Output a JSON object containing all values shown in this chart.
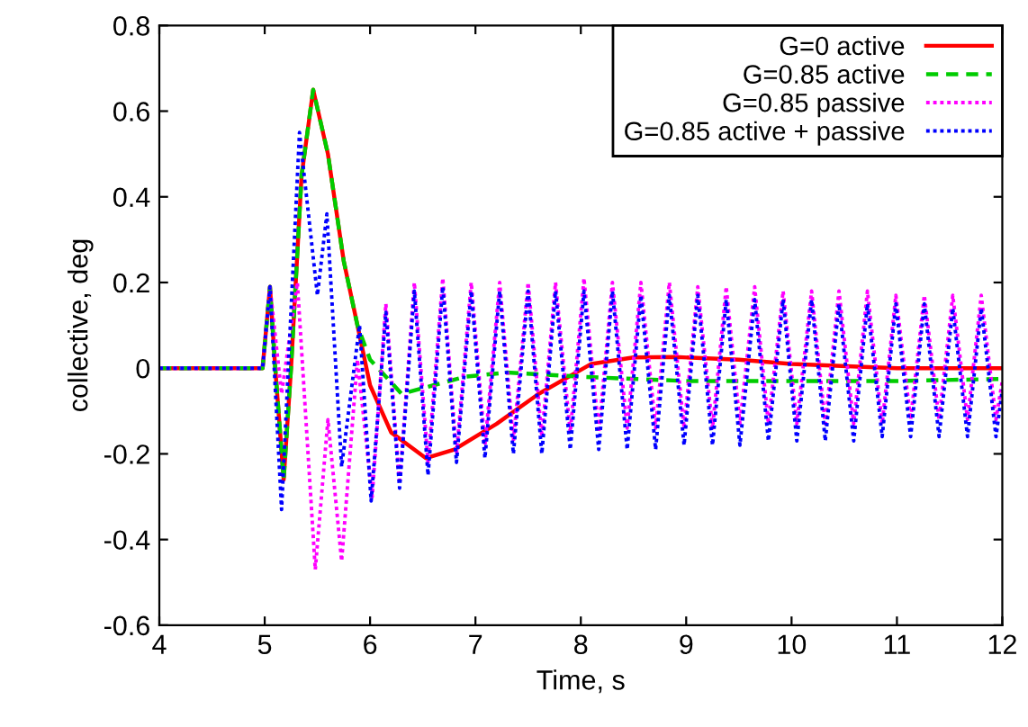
{
  "chart_data": {
    "type": "line",
    "xlabel": "Time, s",
    "ylabel": "collective, deg",
    "xlim": [
      4,
      12
    ],
    "ylim": [
      -0.6,
      0.8
    ],
    "xticks": [
      4,
      5,
      6,
      7,
      8,
      9,
      10,
      11,
      12
    ],
    "yticks": [
      -0.6,
      -0.4,
      -0.2,
      0,
      0.2,
      0.4,
      0.6,
      0.8
    ],
    "grid": false,
    "legend": "top right",
    "marker": "none",
    "series": [
      {
        "name": "G=0 active",
        "color": "#ff0000",
        "line_style": "solid",
        "x": [
          4,
          4.98,
          5.05,
          5.1,
          5.18,
          5.25,
          5.35,
          5.46,
          5.6,
          5.75,
          5.88,
          6.0,
          6.2,
          6.53,
          6.8,
          7.2,
          7.6,
          8.1,
          8.5,
          8.9,
          9.5,
          10,
          11,
          12
        ],
        "values": [
          0,
          0,
          0.19,
          0.0,
          -0.26,
          0.0,
          0.45,
          0.65,
          0.5,
          0.25,
          0.1,
          -0.04,
          -0.15,
          -0.21,
          -0.19,
          -0.13,
          -0.06,
          0.01,
          0.025,
          0.026,
          0.02,
          0.01,
          0.0,
          0.0
        ]
      },
      {
        "name": "G=0.85 active",
        "color": "#00cc00",
        "line_style": "dashed",
        "x": [
          4,
          4.98,
          5.05,
          5.1,
          5.18,
          5.25,
          5.35,
          5.46,
          5.6,
          5.75,
          5.88,
          6.0,
          6.3,
          6.6,
          6.9,
          7.3,
          8,
          9,
          10,
          11,
          12
        ],
        "values": [
          0,
          0,
          0.19,
          0.0,
          -0.26,
          0.0,
          0.45,
          0.65,
          0.5,
          0.25,
          0.1,
          0.02,
          -0.06,
          -0.04,
          -0.02,
          -0.01,
          -0.02,
          -0.03,
          -0.03,
          -0.03,
          -0.025
        ]
      },
      {
        "name": "G=0.85 passive",
        "color": "#ff00ff",
        "line_style": "dotted",
        "x": [
          4,
          4.98,
          5.05,
          5.16,
          5.31,
          5.48,
          5.6,
          5.73,
          5.88,
          6.02,
          6.15,
          6.28,
          6.42,
          6.55,
          6.69,
          6.82,
          6.96,
          7.09,
          7.23,
          7.36,
          7.5,
          7.63,
          7.76,
          7.9,
          8.03,
          8.17,
          8.3,
          8.44,
          8.57,
          8.71,
          8.84,
          8.98,
          9.11,
          9.25,
          9.38,
          9.51,
          9.65,
          9.78,
          9.92,
          10.05,
          10.19,
          10.32,
          10.45,
          10.59,
          10.72,
          10.86,
          10.99,
          11.13,
          11.26,
          11.4,
          11.53,
          11.67,
          11.8,
          11.94,
          12
        ],
        "values": [
          0,
          0,
          0.19,
          -0.06,
          0.2,
          -0.47,
          -0.12,
          -0.45,
          0.02,
          -0.3,
          0.15,
          -0.27,
          0.2,
          -0.22,
          0.21,
          -0.2,
          0.2,
          -0.18,
          0.2,
          -0.17,
          0.2,
          -0.16,
          0.2,
          -0.15,
          0.21,
          -0.15,
          0.2,
          -0.14,
          0.2,
          -0.14,
          0.2,
          -0.14,
          0.19,
          -0.14,
          0.19,
          -0.13,
          0.19,
          -0.13,
          0.18,
          -0.13,
          0.18,
          -0.13,
          0.18,
          -0.13,
          0.18,
          -0.13,
          0.17,
          -0.12,
          0.17,
          -0.12,
          0.17,
          -0.12,
          0.17,
          -0.12,
          -0.03
        ]
      },
      {
        "name": "G=0.85 active + passive",
        "color": "#0000ff",
        "line_style": "dotted",
        "x": [
          4,
          4.98,
          5.05,
          5.16,
          5.33,
          5.5,
          5.59,
          5.73,
          5.9,
          6.01,
          6.15,
          6.28,
          6.42,
          6.55,
          6.69,
          6.82,
          6.96,
          7.09,
          7.23,
          7.36,
          7.5,
          7.63,
          7.76,
          7.9,
          8.03,
          8.17,
          8.3,
          8.44,
          8.57,
          8.71,
          8.84,
          8.98,
          9.11,
          9.25,
          9.38,
          9.51,
          9.65,
          9.78,
          9.92,
          10.05,
          10.19,
          10.32,
          10.45,
          10.59,
          10.72,
          10.86,
          10.99,
          11.13,
          11.26,
          11.4,
          11.53,
          11.67,
          11.8,
          11.94,
          12
        ],
        "values": [
          0,
          0,
          0.19,
          -0.33,
          0.55,
          0.17,
          0.36,
          -0.23,
          0.1,
          -0.31,
          0.13,
          -0.28,
          0.18,
          -0.25,
          0.19,
          -0.22,
          0.18,
          -0.21,
          0.18,
          -0.2,
          0.18,
          -0.2,
          0.18,
          -0.19,
          0.18,
          -0.19,
          0.18,
          -0.19,
          0.17,
          -0.19,
          0.17,
          -0.18,
          0.17,
          -0.18,
          0.16,
          -0.18,
          0.16,
          -0.17,
          0.16,
          -0.17,
          0.16,
          -0.17,
          0.15,
          -0.17,
          0.15,
          -0.16,
          0.15,
          -0.16,
          0.15,
          -0.16,
          0.14,
          -0.16,
          0.14,
          -0.16,
          -0.05
        ]
      }
    ]
  }
}
